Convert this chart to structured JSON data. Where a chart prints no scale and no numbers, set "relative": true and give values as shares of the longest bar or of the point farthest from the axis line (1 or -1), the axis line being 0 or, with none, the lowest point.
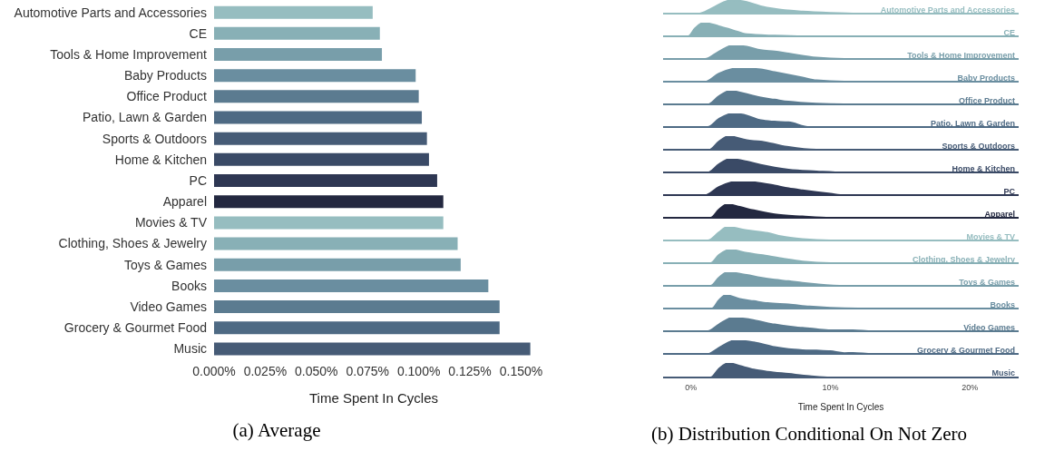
{
  "chart_data": [
    {
      "type": "bar",
      "orientation": "horizontal",
      "xlabel": "Time Spent In Cycles",
      "annotations": [
        "(a) Average"
      ],
      "categories": [
        "Automotive Parts and Accessories",
        "CE",
        "Tools & Home Improvement",
        "Baby Products",
        "Office Product",
        "Patio, Lawn & Garden",
        "Sports & Outdoors",
        "Home & Kitchen",
        "PC",
        "Apparel",
        "Movies & TV",
        "Clothing, Shoes & Jewelry",
        "Toys & Games",
        "Books",
        "Video Games",
        "Grocery & Gourmet Food",
        "Music"
      ],
      "values": [
        0.0775,
        0.081,
        0.082,
        0.0985,
        0.1,
        0.1015,
        0.104,
        0.105,
        0.109,
        0.112,
        0.112,
        0.119,
        0.1205,
        0.134,
        0.1395,
        0.1395,
        0.1545
      ],
      "colors": [
        "#96bdc0",
        "#88b0b6",
        "#789eaa",
        "#6a8ea0",
        "#5b7b90",
        "#4e6a84",
        "#465b76",
        "#3a4a66",
        "#2e3753",
        "#232840",
        "#96bdc0",
        "#88b0b6",
        "#789eaa",
        "#6a8ea0",
        "#5b7b90",
        "#4e6a84",
        "#465b76"
      ],
      "xlim": [
        0,
        0.156
      ],
      "xticks": [
        {
          "value": 0,
          "label": "0.000%"
        },
        {
          "value": 0.025,
          "label": "0.025%"
        },
        {
          "value": 0.05,
          "label": "0.050%"
        },
        {
          "value": 0.075,
          "label": "0.075%"
        },
        {
          "value": 0.1,
          "label": "0.100%"
        },
        {
          "value": 0.125,
          "label": "0.125%"
        },
        {
          "value": 0.15,
          "label": "0.150%"
        }
      ]
    },
    {
      "type": "area",
      "relative": true,
      "tick_labels": false,
      "xlim": [
        -2,
        23.5
      ],
      "series": [
        {
          "name": "Automotive Parts and Accessories",
          "color": "#96bdc0",
          "x": [
            -2,
            0.5,
            1.5,
            2.5,
            3,
            4,
            5,
            6,
            8,
            10,
            12,
            23.5
          ],
          "values": [
            0,
            0,
            0.4,
            0.9,
            1,
            0.85,
            0.55,
            0.35,
            0.15,
            0.05,
            0,
            0
          ]
        }
      ]
    },
    {
      "type": "area",
      "relative": true,
      "tick_labels": false,
      "xlim": [
        -2,
        23.5
      ],
      "series": [
        {
          "name": "CE",
          "color": "#88b0b6",
          "x": [
            -2,
            -0.2,
            0.3,
            0.9,
            2,
            3,
            4,
            6,
            8,
            23.5
          ],
          "values": [
            0,
            0,
            0.6,
            1,
            0.75,
            0.45,
            0.15,
            0.05,
            0,
            0
          ]
        }
      ]
    },
    {
      "type": "area",
      "relative": true,
      "tick_labels": false,
      "xlim": [
        -2,
        23.5
      ],
      "series": [
        {
          "name": "Tools & Home Improvement",
          "color": "#789eaa",
          "x": [
            -2,
            1,
            2,
            3,
            4,
            5,
            6,
            7,
            9,
            11,
            23.5
          ],
          "values": [
            0,
            0,
            0.55,
            1,
            0.9,
            0.65,
            0.55,
            0.4,
            0.1,
            0,
            0
          ]
        }
      ]
    },
    {
      "type": "area",
      "relative": true,
      "tick_labels": false,
      "xlim": [
        -2,
        23.5
      ],
      "series": [
        {
          "name": "Baby Products",
          "color": "#6a8ea0",
          "x": [
            -2,
            1,
            2,
            3.5,
            5,
            6,
            7,
            8,
            9,
            11,
            23.5
          ],
          "values": [
            0,
            0,
            0.6,
            1,
            0.9,
            0.7,
            0.5,
            0.3,
            0.1,
            0,
            0
          ]
        }
      ]
    },
    {
      "type": "area",
      "relative": true,
      "tick_labels": false,
      "xlim": [
        -2,
        23.5
      ],
      "series": [
        {
          "name": "Office Product",
          "color": "#5b7b90",
          "x": [
            -2,
            1.2,
            2,
            2.8,
            4,
            5,
            6,
            7,
            9,
            11,
            23.5
          ],
          "values": [
            0,
            0,
            0.6,
            1,
            0.75,
            0.5,
            0.35,
            0.2,
            0.05,
            0,
            0
          ]
        }
      ]
    },
    {
      "type": "area",
      "relative": true,
      "tick_labels": false,
      "xlim": [
        -2,
        23.5
      ],
      "series": [
        {
          "name": "Patio, Lawn & Garden",
          "color": "#4e6a84",
          "x": [
            -2,
            1.2,
            2,
            3,
            4,
            5,
            6,
            7,
            8.5,
            23.5
          ],
          "values": [
            0,
            0,
            0.6,
            1,
            0.85,
            0.5,
            0.4,
            0.35,
            0,
            0
          ]
        }
      ]
    },
    {
      "type": "area",
      "relative": true,
      "tick_labels": false,
      "xlim": [
        -2,
        23.5
      ],
      "series": [
        {
          "name": "Sports & Outdoors",
          "color": "#465b76",
          "x": [
            -2,
            1.3,
            2,
            2.7,
            4,
            5,
            6,
            7,
            9,
            23.5
          ],
          "values": [
            0,
            0,
            0.6,
            1,
            0.7,
            0.6,
            0.4,
            0.2,
            0,
            0
          ]
        }
      ]
    },
    {
      "type": "area",
      "relative": true,
      "tick_labels": false,
      "xlim": [
        -2,
        23.5
      ],
      "series": [
        {
          "name": "Home & Kitchen",
          "color": "#3a4a66",
          "x": [
            -2,
            1.2,
            2,
            2.8,
            4,
            5,
            6,
            7,
            9,
            11,
            23.5
          ],
          "values": [
            0,
            0,
            0.6,
            1,
            0.8,
            0.55,
            0.35,
            0.2,
            0.08,
            0,
            0
          ]
        }
      ]
    },
    {
      "type": "area",
      "relative": true,
      "tick_labels": false,
      "xlim": [
        -2,
        23.5
      ],
      "series": [
        {
          "name": "PC",
          "color": "#2e3753",
          "x": [
            -2,
            1,
            2,
            3.3,
            4.5,
            6,
            7,
            8,
            10,
            11,
            23.5
          ],
          "values": [
            0,
            0,
            0.6,
            1,
            0.95,
            0.7,
            0.5,
            0.35,
            0.1,
            0,
            0
          ]
        }
      ]
    },
    {
      "type": "area",
      "relative": true,
      "tick_labels": false,
      "xlim": [
        -2,
        23.5
      ],
      "series": [
        {
          "name": "Apparel",
          "color": "#232840",
          "x": [
            -2,
            1.4,
            2,
            2.6,
            3.5,
            4.5,
            6,
            8,
            10,
            23.5
          ],
          "values": [
            0,
            0,
            0.6,
            1,
            0.8,
            0.55,
            0.25,
            0.1,
            0,
            0
          ]
        }
      ]
    },
    {
      "type": "area",
      "relative": true,
      "tick_labels": false,
      "xlim": [
        -2,
        23.5
      ],
      "series": [
        {
          "name": "Movies & TV",
          "color": "#96bdc0",
          "x": [
            -2,
            1.2,
            2,
            2.6,
            4,
            5.5,
            6.5,
            8,
            10,
            23.5
          ],
          "values": [
            0,
            0,
            0.6,
            1,
            0.75,
            0.55,
            0.3,
            0.1,
            0,
            0
          ]
        }
      ]
    },
    {
      "type": "area",
      "relative": true,
      "tick_labels": false,
      "xlim": [
        -2,
        23.5
      ],
      "series": [
        {
          "name": "Clothing, Shoes & Jewelry",
          "color": "#88b0b6",
          "x": [
            -2,
            1.4,
            2,
            2.8,
            4,
            5,
            6.5,
            8,
            10,
            23.5
          ],
          "values": [
            0,
            0,
            0.6,
            1,
            0.75,
            0.6,
            0.35,
            0.12,
            0,
            0
          ]
        }
      ]
    },
    {
      "type": "area",
      "relative": true,
      "tick_labels": false,
      "xlim": [
        -2,
        23.5
      ],
      "series": [
        {
          "name": "Toys & Games",
          "color": "#789eaa",
          "x": [
            -2,
            1.4,
            2,
            2.6,
            4,
            5,
            6,
            7,
            8,
            9,
            11,
            23.5
          ],
          "values": [
            0,
            0,
            0.6,
            1,
            0.8,
            0.6,
            0.45,
            0.35,
            0.22,
            0.12,
            0,
            0
          ]
        }
      ]
    },
    {
      "type": "area",
      "relative": true,
      "tick_labels": false,
      "xlim": [
        -2,
        23.5
      ],
      "series": [
        {
          "name": "Books",
          "color": "#6a8ea0",
          "x": [
            -2,
            1.5,
            2,
            2.5,
            3.5,
            4.5,
            5.5,
            7,
            8.5,
            10,
            12,
            23.5
          ],
          "values": [
            0,
            0,
            0.6,
            1,
            0.7,
            0.55,
            0.4,
            0.3,
            0.15,
            0.05,
            0,
            0
          ]
        }
      ]
    },
    {
      "type": "area",
      "relative": true,
      "tick_labels": false,
      "xlim": [
        -2,
        23.5
      ],
      "series": [
        {
          "name": "Video Games",
          "color": "#5b7b90",
          "x": [
            -2,
            1.2,
            2,
            3,
            4,
            5,
            6,
            7,
            8,
            9,
            10,
            11.6,
            13,
            23.5
          ],
          "values": [
            0,
            0,
            0.5,
            1,
            0.9,
            0.7,
            0.5,
            0.35,
            0.25,
            0.15,
            0.08,
            0.08,
            0,
            0
          ]
        }
      ]
    },
    {
      "type": "area",
      "relative": true,
      "tick_labels": false,
      "xlim": [
        -2,
        23.5
      ],
      "series": [
        {
          "name": "Grocery & Gourmet Food",
          "color": "#4e6a84",
          "x": [
            -2,
            1.2,
            2,
            3.2,
            4.5,
            6,
            7,
            8,
            9,
            10,
            11,
            11.6,
            13,
            23.5
          ],
          "values": [
            0,
            0,
            0.45,
            1,
            0.85,
            0.5,
            0.35,
            0.28,
            0.25,
            0.2,
            0.06,
            0.08,
            0,
            0
          ]
        }
      ]
    },
    {
      "type": "area",
      "relative": true,
      "tick_labels": "x",
      "xlim": [
        -2,
        23.5
      ],
      "xticks": [
        {
          "value": 0,
          "label": "0%"
        },
        {
          "value": 10,
          "label": "10%"
        },
        {
          "value": 20,
          "label": "20%"
        }
      ],
      "xlabel": "Time Spent In Cycles",
      "annotations": [
        "(b) Distribution Conditional On Not Zero"
      ],
      "series": [
        {
          "name": "Music",
          "color": "#465b76",
          "x": [
            -2,
            1.4,
            2,
            2.7,
            3.5,
            4.5,
            5.5,
            7,
            8.5,
            10,
            23.5
          ],
          "values": [
            0,
            0,
            0.6,
            1,
            0.8,
            0.55,
            0.4,
            0.25,
            0.1,
            0,
            0
          ]
        }
      ]
    }
  ]
}
